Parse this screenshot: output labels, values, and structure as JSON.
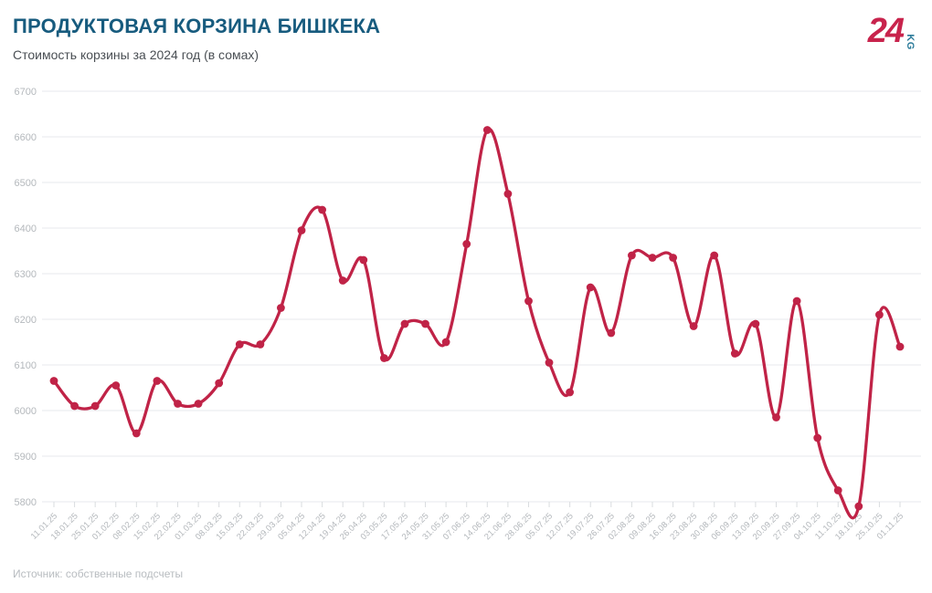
{
  "header": {
    "title": "ПРОДУКТОВАЯ КОРЗИНА БИШКЕКА",
    "subtitle": "Стоимость корзины за 2024 год (в сомах)",
    "logo": {
      "number": "24",
      "suffix": "KG"
    }
  },
  "footer": {
    "source": "Источник: собственные подсчеты"
  },
  "colors": {
    "line": "#c02347",
    "title": "#175b7e",
    "logo_red": "#c8234c",
    "logo_teal": "#2a7a99",
    "axis_label": "#b4b8bc",
    "gridline": "#eceef0",
    "tick": "#d9dcdf"
  },
  "chart_data": {
    "type": "line",
    "title": "ПРОДУКТОВАЯ КОРЗИНА БИШКЕКА",
    "subtitle": "Стоимость корзины за 2024 год (в сомах)",
    "xlabel": "",
    "ylabel": "",
    "ylim": [
      5800,
      6700
    ],
    "yticks": [
      5800,
      5900,
      6000,
      6100,
      6200,
      6300,
      6400,
      6500,
      6600,
      6700
    ],
    "grid": "horizontal",
    "legend_position": "none",
    "x": [
      "11.01.25",
      "18.01.25",
      "25.01.25",
      "01.02.25",
      "08.02.25",
      "15.02.25",
      "22.02.25",
      "01.03.25",
      "08.03.25",
      "15.03.25",
      "22.03.25",
      "29.03.25",
      "05.04.25",
      "12.04.25",
      "19.04.25",
      "26.04.25",
      "03.05.25",
      "17.05.25",
      "24.05.25",
      "31.05.25",
      "07.06.25",
      "14.06.25",
      "21.06.25",
      "28.06.25",
      "05.07.25",
      "12.07.25",
      "19.07.25",
      "26.07.25",
      "02.08.25",
      "09.08.25",
      "16.08.25",
      "23.08.25",
      "30.08.25",
      "06.09.25",
      "13.09.25",
      "20.09.25",
      "27.09.25",
      "04.10.25",
      "11.10.25",
      "18.10.25",
      "25.10.25",
      "01.11.25"
    ],
    "values": [
      6065,
      6010,
      6010,
      6055,
      5950,
      6065,
      6015,
      6015,
      6060,
      6145,
      6145,
      6225,
      6395,
      6440,
      6285,
      6330,
      6115,
      6190,
      6190,
      6150,
      6365,
      6615,
      6475,
      6240,
      6105,
      6040,
      6270,
      6170,
      6340,
      6335,
      6335,
      6185,
      6340,
      6125,
      6190,
      5985,
      6240,
      5940,
      5825,
      5790,
      6210,
      6140
    ]
  }
}
